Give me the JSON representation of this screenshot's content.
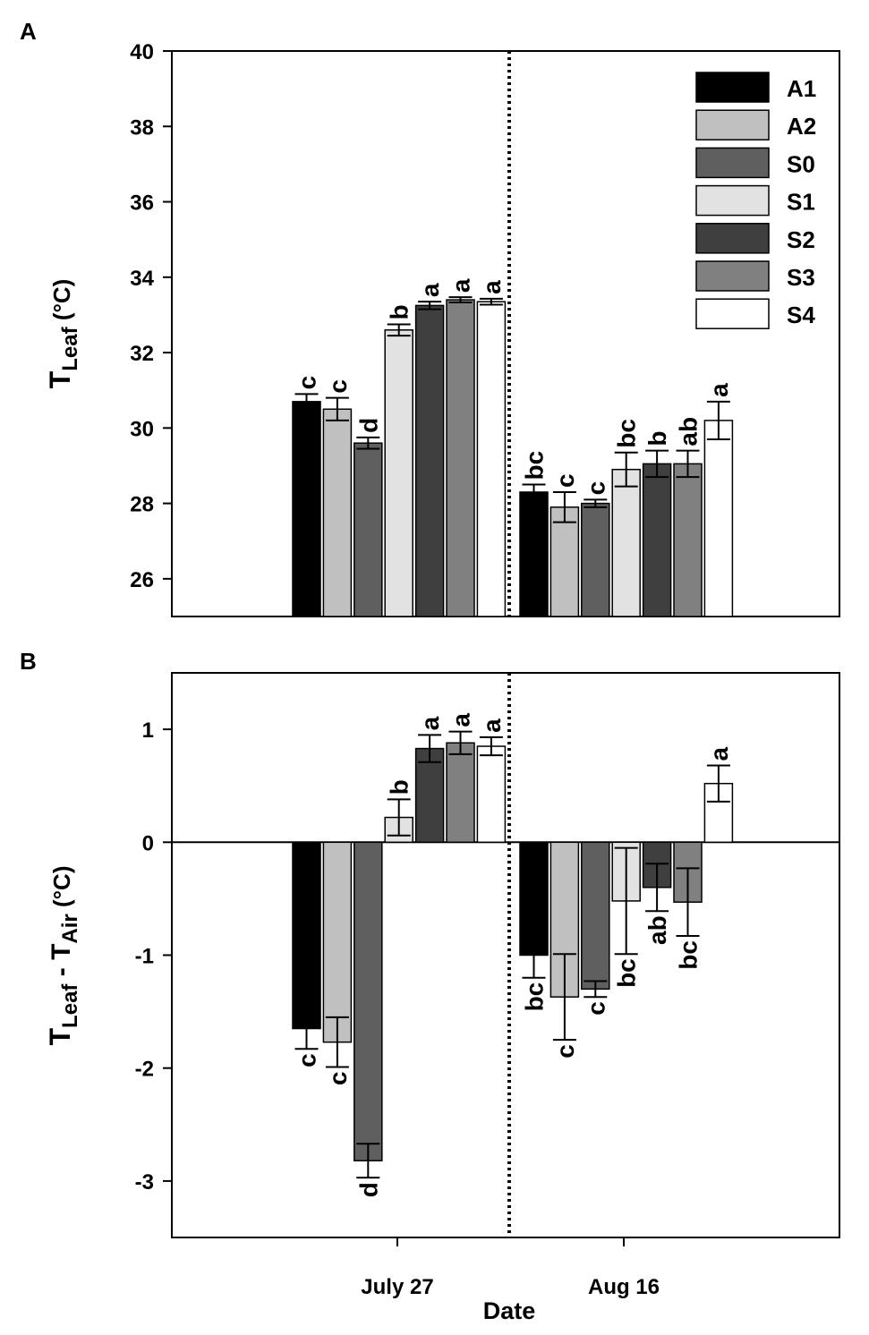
{
  "chart_data": [
    {
      "type": "bar",
      "panel": "A",
      "ylabel_main": "T",
      "ylabel_sub": "Leaf",
      "ylabel_unit": " (°C)",
      "ylim": [
        25,
        40
      ],
      "yticks": [
        26,
        28,
        30,
        32,
        34,
        36,
        38,
        40
      ],
      "categories": [
        "July 27",
        "Aug 16"
      ],
      "series": [
        {
          "name": "A1",
          "color": "#000000",
          "values": [
            30.7,
            28.3
          ],
          "errors": [
            0.2,
            0.2
          ],
          "letters": [
            "c",
            "bc"
          ]
        },
        {
          "name": "A2",
          "color": "#c0c0c0",
          "values": [
            30.5,
            27.9
          ],
          "errors": [
            0.3,
            0.4
          ],
          "letters": [
            "c",
            "c"
          ]
        },
        {
          "name": "S0",
          "color": "#5f5f5f",
          "values": [
            29.6,
            28.0
          ],
          "errors": [
            0.15,
            0.1
          ],
          "letters": [
            "d",
            "c"
          ]
        },
        {
          "name": "S1",
          "color": "#e2e2e2",
          "values": [
            32.6,
            28.9
          ],
          "errors": [
            0.15,
            0.45
          ],
          "letters": [
            "b",
            "bc"
          ]
        },
        {
          "name": "S2",
          "color": "#3f3f3f",
          "values": [
            33.25,
            29.05
          ],
          "errors": [
            0.1,
            0.35
          ],
          "letters": [
            "a",
            "b"
          ]
        },
        {
          "name": "S3",
          "color": "#808080",
          "values": [
            33.4,
            29.05
          ],
          "errors": [
            0.07,
            0.35
          ],
          "letters": [
            "a",
            "ab"
          ]
        },
        {
          "name": "S4",
          "color": "#ffffff",
          "values": [
            33.35,
            30.2
          ],
          "errors": [
            0.08,
            0.5
          ],
          "letters": [
            "a",
            "a"
          ]
        }
      ]
    },
    {
      "type": "bar",
      "panel": "B",
      "ylabel_main": "T",
      "ylabel_sub": "Leaf",
      "ylabel_mid": " - T",
      "ylabel_sub2": "Air",
      "ylabel_unit": " (°C)",
      "xlabel": "Date",
      "ylim": [
        -3.5,
        1.5
      ],
      "yticks": [
        1,
        0,
        -1,
        -2,
        -3
      ],
      "categories": [
        "July 27",
        "Aug 16"
      ],
      "series": [
        {
          "name": "A1",
          "color": "#000000",
          "values": [
            -1.65,
            -1.0
          ],
          "errors": [
            0.18,
            0.2
          ],
          "letters": [
            "c",
            "bc"
          ]
        },
        {
          "name": "A2",
          "color": "#c0c0c0",
          "values": [
            -1.77,
            -1.37
          ],
          "errors": [
            0.22,
            0.38
          ],
          "letters": [
            "c",
            "c"
          ]
        },
        {
          "name": "S0",
          "color": "#5f5f5f",
          "values": [
            -2.82,
            -1.3
          ],
          "errors": [
            0.15,
            0.07
          ],
          "letters": [
            "d",
            "c"
          ]
        },
        {
          "name": "S1",
          "color": "#e2e2e2",
          "values": [
            0.22,
            -0.52
          ],
          "errors": [
            0.16,
            0.47
          ],
          "letters": [
            "b",
            "bc"
          ]
        },
        {
          "name": "S2",
          "color": "#3f3f3f",
          "values": [
            0.83,
            -0.4
          ],
          "errors": [
            0.12,
            0.21
          ],
          "letters": [
            "a",
            "ab"
          ]
        },
        {
          "name": "S3",
          "color": "#808080",
          "values": [
            0.88,
            -0.53
          ],
          "errors": [
            0.1,
            0.3
          ],
          "letters": [
            "a",
            "bc"
          ]
        },
        {
          "name": "S4",
          "color": "#ffffff",
          "values": [
            0.85,
            0.52
          ],
          "errors": [
            0.08,
            0.16
          ],
          "letters": [
            "a",
            "a"
          ]
        }
      ]
    }
  ]
}
